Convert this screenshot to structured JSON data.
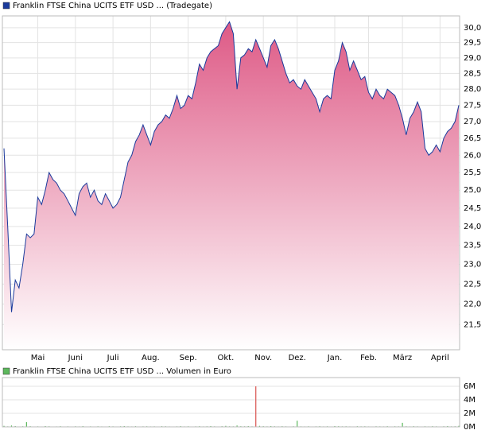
{
  "chart_data": [
    {
      "type": "area",
      "log_scale": true,
      "grid": true,
      "categories": [
        null,
        null,
        null,
        null,
        null,
        null,
        null,
        null,
        null,
        "Mai",
        null,
        null,
        null,
        null,
        null,
        null,
        null,
        null,
        null,
        "Juni",
        null,
        null,
        null,
        null,
        null,
        null,
        null,
        null,
        null,
        "Juli",
        null,
        null,
        null,
        null,
        null,
        null,
        null,
        null,
        null,
        "Aug.",
        null,
        null,
        null,
        null,
        null,
        null,
        null,
        null,
        null,
        "Sep.",
        null,
        null,
        null,
        null,
        null,
        null,
        null,
        null,
        null,
        "Okt.",
        null,
        null,
        null,
        null,
        null,
        null,
        null,
        null,
        null,
        "Nov.",
        null,
        null,
        null,
        null,
        null,
        null,
        null,
        null,
        "Dez.",
        null,
        null,
        null,
        null,
        null,
        null,
        null,
        null,
        null,
        "Jan.",
        null,
        null,
        null,
        null,
        null,
        null,
        null,
        null,
        "Feb.",
        null,
        null,
        null,
        null,
        null,
        null,
        null,
        null,
        "März",
        null,
        null,
        null,
        null,
        null,
        null,
        null,
        null,
        null,
        "April",
        null,
        null,
        null,
        null,
        null
      ],
      "series": [
        {
          "name": "Franklin FTSE China UCITS ETF USD ... (Tradegate)",
          "color": "#1a3a9c",
          "values": [
            26.2,
            24.0,
            21.8,
            22.6,
            22.4,
            23.0,
            23.8,
            23.7,
            23.8,
            24.8,
            24.6,
            25.0,
            25.5,
            25.3,
            25.2,
            25.0,
            24.9,
            24.7,
            24.5,
            24.3,
            24.9,
            25.1,
            25.2,
            24.8,
            25.0,
            24.7,
            24.6,
            24.9,
            24.7,
            24.5,
            24.6,
            24.8,
            25.3,
            25.8,
            26.0,
            26.4,
            26.6,
            26.9,
            26.6,
            26.3,
            26.7,
            26.9,
            27.0,
            27.2,
            27.1,
            27.4,
            27.8,
            27.4,
            27.5,
            27.8,
            27.7,
            28.2,
            28.8,
            28.6,
            29.0,
            29.2,
            29.3,
            29.4,
            29.8,
            30.0,
            30.2,
            29.8,
            28.0,
            29.0,
            29.1,
            29.3,
            29.2,
            29.6,
            29.3,
            29.0,
            28.7,
            29.4,
            29.6,
            29.3,
            28.9,
            28.5,
            28.2,
            28.3,
            28.1,
            28.0,
            28.3,
            28.1,
            27.9,
            27.7,
            27.3,
            27.7,
            27.8,
            27.7,
            28.6,
            28.9,
            29.5,
            29.2,
            28.6,
            28.9,
            28.6,
            28.3,
            28.4,
            27.9,
            27.7,
            28.0,
            27.8,
            27.7,
            28.0,
            27.9,
            27.8,
            27.5,
            27.1,
            26.6,
            27.1,
            27.3,
            27.6,
            27.3,
            26.2,
            26.0,
            26.1,
            26.3,
            26.1,
            26.5,
            26.7,
            26.8,
            27.0,
            27.5
          ]
        }
      ],
      "ylim": [
        20.9,
        30.4
      ],
      "yticks": [
        {
          "value": 21.5,
          "label": "21,5"
        },
        {
          "value": 22.0,
          "label": "22,0"
        },
        {
          "value": 22.5,
          "label": "22,5"
        },
        {
          "value": 23.0,
          "label": "23,0"
        },
        {
          "value": 23.5,
          "label": "23,5"
        },
        {
          "value": 24.0,
          "label": "24,0"
        },
        {
          "value": 24.5,
          "label": "24,5"
        },
        {
          "value": 25.0,
          "label": "25,0"
        },
        {
          "value": 25.5,
          "label": "25,5"
        },
        {
          "value": 26.0,
          "label": "26,0"
        },
        {
          "value": 26.5,
          "label": "26,5"
        },
        {
          "value": 27.0,
          "label": "27,0"
        },
        {
          "value": 27.5,
          "label": "27,5"
        },
        {
          "value": 28.0,
          "label": "28,0"
        },
        {
          "value": 28.5,
          "label": "28,5"
        },
        {
          "value": 29.0,
          "label": "29,0"
        },
        {
          "value": 29.5,
          "label": "29,5"
        },
        {
          "value": 30.0,
          "label": "30,0"
        }
      ]
    },
    {
      "type": "bar",
      "grid": true,
      "series": [
        {
          "name": "Franklin FTSE China UCITS ETF USD ... Volumen in Euro",
          "color": "#5cb85c",
          "values": [
            150000,
            80000,
            200000,
            120000,
            60000,
            90000,
            700000,
            100000,
            50000,
            80000,
            60000,
            120000,
            90000,
            40000,
            70000,
            100000,
            60000,
            80000,
            50000,
            90000,
            70000,
            110000,
            60000,
            80000,
            50000,
            90000,
            70000,
            60000,
            100000,
            80000,
            60000,
            90000,
            120000,
            80000,
            70000,
            100000,
            60000,
            80000,
            90000,
            70000,
            80000,
            60000,
            100000,
            90000,
            70000,
            60000,
            80000,
            110000,
            70000,
            90000,
            60000,
            80000,
            100000,
            70000,
            90000,
            120000,
            80000,
            60000,
            100000,
            150000,
            90000,
            80000,
            200000,
            100000,
            90000,
            120000,
            80000,
            6000000,
            150000,
            100000,
            80000,
            120000,
            90000,
            70000,
            100000,
            80000,
            60000,
            90000,
            900000,
            80000,
            70000,
            90000,
            60000,
            80000,
            100000,
            70000,
            90000,
            60000,
            120000,
            100000,
            80000,
            90000,
            70000,
            60000,
            100000,
            80000,
            90000,
            70000,
            60000,
            90000,
            80000,
            70000,
            100000,
            60000,
            90000,
            80000,
            600000,
            90000,
            70000,
            100000,
            80000,
            60000,
            90000,
            70000,
            100000,
            80000,
            60000,
            90000,
            120000,
            80000,
            90000,
            150000
          ]
        }
      ],
      "ylim": [
        0,
        7300000
      ],
      "yticks": [
        {
          "value": 0,
          "label": "0M"
        },
        {
          "value": 2000000,
          "label": "2M"
        },
        {
          "value": 4000000,
          "label": "4M"
        },
        {
          "value": 6000000,
          "label": "6M"
        }
      ]
    }
  ]
}
